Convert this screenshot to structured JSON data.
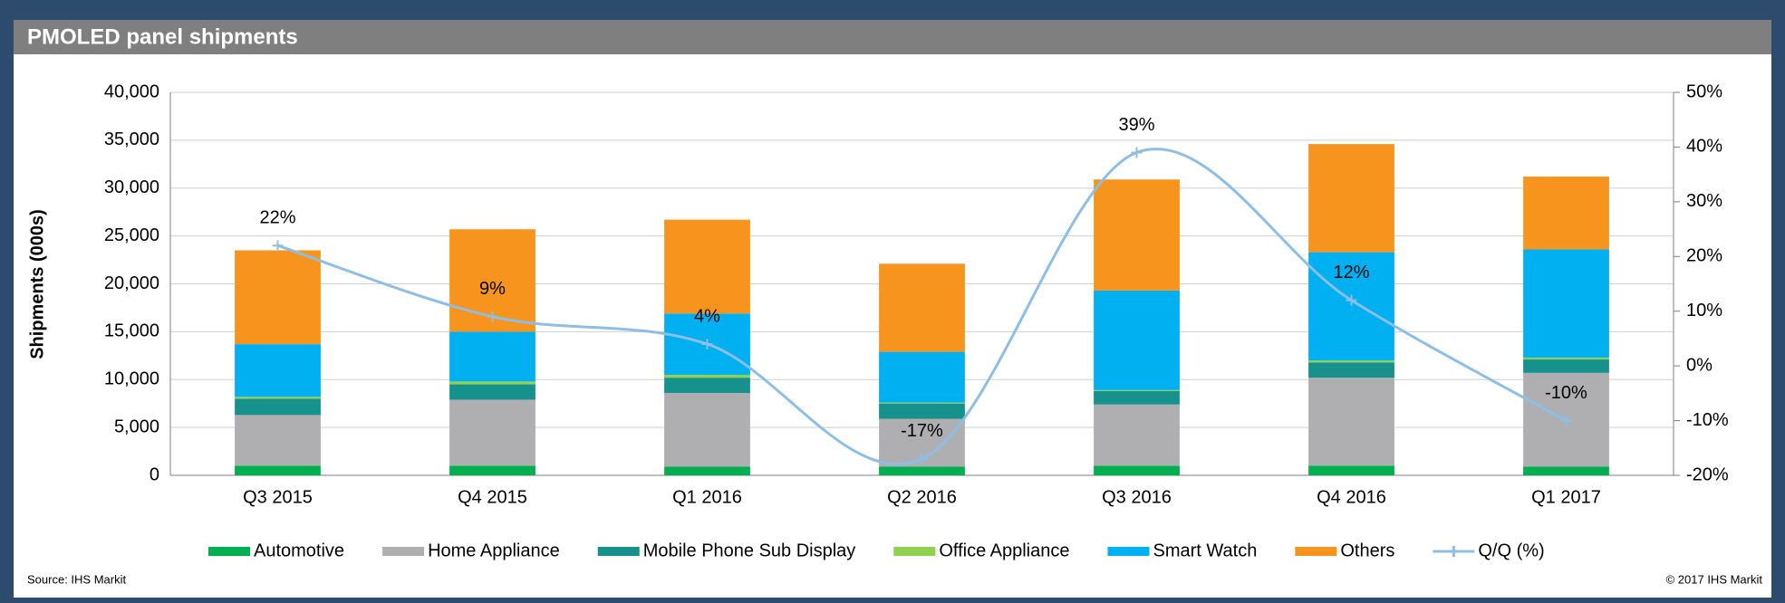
{
  "chart_data": {
    "type": "stacked_bar_line",
    "title": "PMOLED panel shipments",
    "y_label": "Shipments (000s)",
    "source": "Source: IHS Markit",
    "copyright": "© 2017 IHS Markit",
    "categories": [
      "Q3 2015",
      "Q4 2015",
      "Q1 2016",
      "Q2 2016",
      "Q3 2016",
      "Q4 2016",
      "Q1 2017"
    ],
    "series": [
      {
        "name": "Automotive",
        "color": "#00b050",
        "values": [
          1000,
          1000,
          900,
          900,
          1000,
          1000,
          900
        ]
      },
      {
        "name": "Home Appliance",
        "color": "#afafb1",
        "values": [
          5300,
          6900,
          7700,
          5000,
          6400,
          9200,
          9800
        ]
      },
      {
        "name": "Mobile Phone Sub Display",
        "color": "#16918c",
        "values": [
          1700,
          1600,
          1600,
          1600,
          1400,
          1600,
          1400
        ]
      },
      {
        "name": "Office Appliance",
        "color": "#92d050",
        "values": [
          200,
          300,
          300,
          100,
          100,
          200,
          200
        ]
      },
      {
        "name": "Smart Watch",
        "color": "#00b0f0",
        "values": [
          5500,
          5200,
          6400,
          5300,
          10400,
          11300,
          11300
        ]
      },
      {
        "name": "Others",
        "color": "#f7941d",
        "values": [
          9800,
          10700,
          9800,
          9200,
          11600,
          11300,
          7600
        ]
      },
      {
        "name": "Q/Q (%)",
        "color": "#8dbfe6",
        "axis": "y2",
        "values": [
          22,
          9,
          4,
          -17,
          39,
          12,
          -10
        ],
        "value_labels": [
          "22%",
          "9%",
          "4%",
          "-17%",
          "39%",
          "12%",
          "-10%"
        ]
      }
    ],
    "ylim": [
      0,
      40000
    ],
    "yticks": [
      0,
      {
        "value": 5000,
        "label": "5,000"
      },
      {
        "value": 10000,
        "label": "10,000"
      },
      {
        "value": 15000,
        "label": "15,000"
      },
      {
        "value": 20000,
        "label": "20,000"
      },
      {
        "value": 25000,
        "label": "25,000"
      },
      {
        "value": 30000,
        "label": "30,000"
      },
      {
        "value": 35000,
        "label": "35,000"
      },
      {
        "value": 40000,
        "label": "40,000"
      }
    ],
    "y2lim": [
      -20,
      50
    ],
    "y2ticks": [
      {
        "value": -20,
        "label": "-20%"
      },
      {
        "value": -10,
        "label": "-10%"
      },
      {
        "value": 0,
        "label": "0%"
      },
      {
        "value": 10,
        "label": "10%"
      },
      {
        "value": 20,
        "label": "20%"
      },
      {
        "value": 30,
        "label": "30%"
      },
      {
        "value": 40,
        "label": "40%"
      },
      {
        "value": 50,
        "label": "50%"
      }
    ],
    "grid": true,
    "legend": "bottom"
  }
}
